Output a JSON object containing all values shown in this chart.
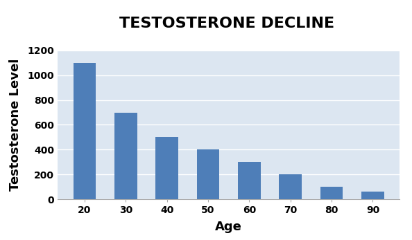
{
  "title": "TESTOSTERONE DECLINE",
  "xlabel": "Age",
  "ylabel": "Testosterone Level",
  "categories": [
    "20",
    "30",
    "40",
    "50",
    "60",
    "70",
    "80",
    "90"
  ],
  "values": [
    1100,
    700,
    500,
    400,
    300,
    200,
    100,
    60
  ],
  "bar_color": "#4E7EB8",
  "plot_bg_color": "#DCE6F1",
  "outer_bg_color": "#FFFFFF",
  "ylim": [
    0,
    1200
  ],
  "yticks": [
    0,
    200,
    400,
    600,
    800,
    1000,
    1200
  ],
  "title_fontsize": 16,
  "title_fontweight": "bold",
  "axis_label_fontsize": 13,
  "axis_label_fontweight": "bold",
  "tick_fontsize": 10,
  "grid_color": "#FFFFFF",
  "grid_linewidth": 1.0,
  "bar_width": 0.55
}
